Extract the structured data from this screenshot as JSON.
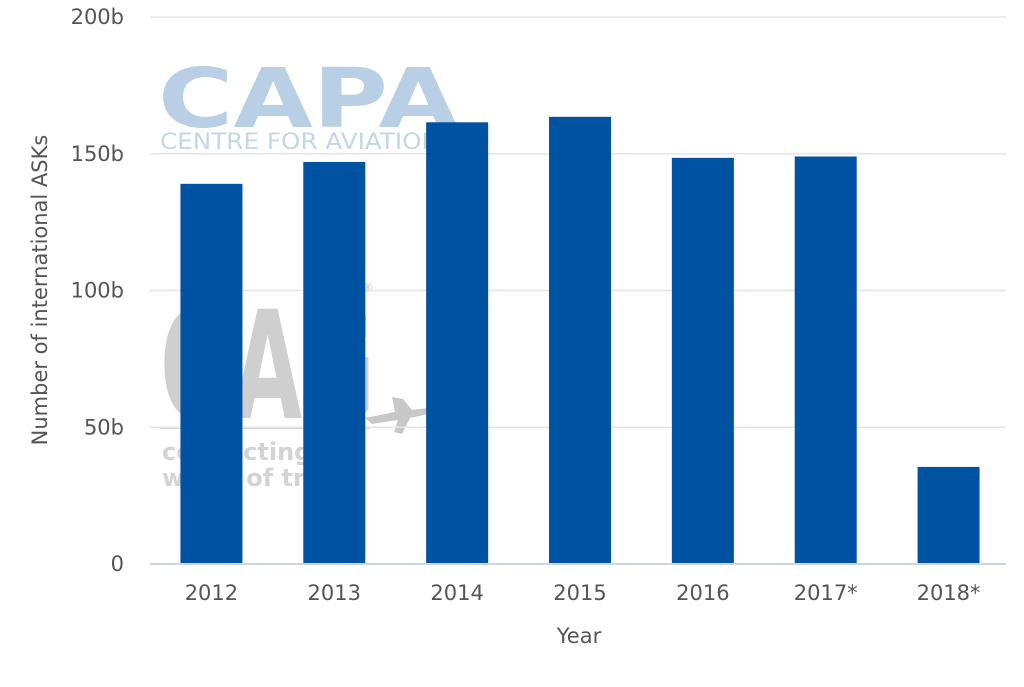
{
  "chart_data": {
    "type": "bar",
    "title": "",
    "xlabel": "Year",
    "ylabel": "Number of international ASKs",
    "categories": [
      "2012",
      "2013",
      "2014",
      "2015",
      "2016",
      "2017*",
      "2018*"
    ],
    "values": [
      139000000000,
      147000000000,
      161500000000,
      163500000000,
      148500000000,
      149000000000,
      35500000000
    ],
    "ylim": [
      0,
      200000000000
    ],
    "yticks": [
      0,
      50000000000,
      100000000000,
      150000000000,
      200000000000
    ],
    "ytick_labels": [
      "0",
      "50b",
      "100b",
      "150b",
      "200b"
    ],
    "grid": true,
    "bar_color": "#0052a3",
    "grid_color": "#e3e6ea",
    "text_color": "#555555"
  },
  "watermarks": {
    "capa_logo": "CAPA",
    "capa_subtitle": "CENTRE FOR AVIATION",
    "oag_logo": "OAG",
    "oag_tagline_1": "connecting the",
    "oag_tagline_2": "world of travel",
    "oag_registered": "®"
  }
}
